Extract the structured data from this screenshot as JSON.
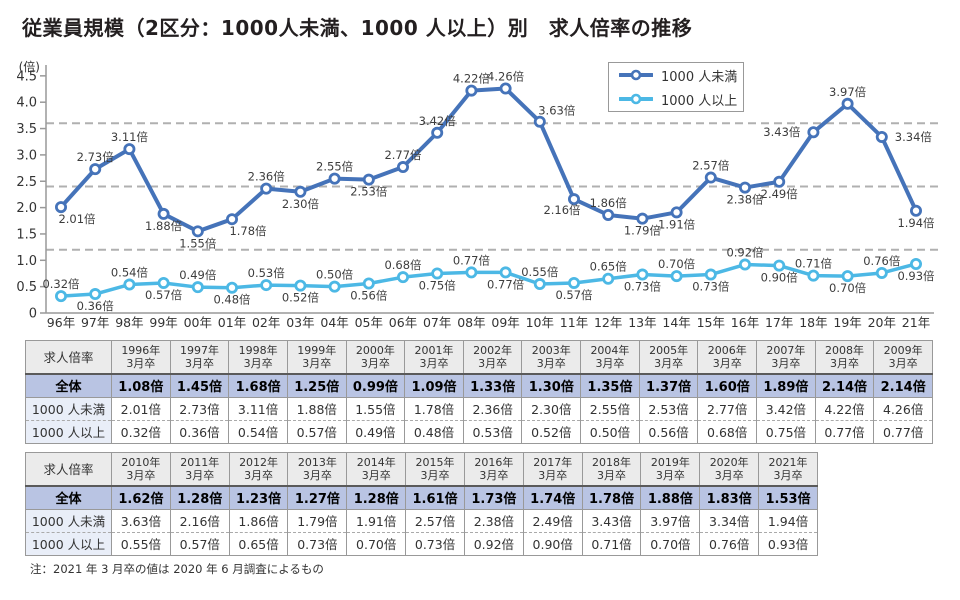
{
  "title": "従業員規模（2区分：1000人未満、1000 人以上）別　求人倍率の推移",
  "footnote": "注：2021 年 3 月卒の値は 2020 年 6 月調査によるもの",
  "colors": {
    "under1000": "#4573b9",
    "over1000": "#4cb8e5",
    "axis": "#999999",
    "gridline": "#b0b0b0",
    "data_label": "#3d3d3d",
    "table_border": "#999999",
    "table_header_bg": "#ebebeb",
    "total_row_bg": "#b9c4e3",
    "row_label_bg": "#e9eef8"
  },
  "chart_data": {
    "type": "line",
    "title": "従業員規模（2区分：1000人未満、1000 人以上）別　求人倍率の推移",
    "unit_label": "(倍)",
    "xlabel": "",
    "ylabel": "倍",
    "ylim": [
      0,
      4.5
    ],
    "ytick_step": 0.5,
    "grid": "dashed horizontal lines",
    "dashed_gridlines": [
      1.2,
      2.4,
      3.6
    ],
    "legend_position": "top-right",
    "x": [
      "96年",
      "97年",
      "98年",
      "99年",
      "00年",
      "01年",
      "02年",
      "03年",
      "04年",
      "05年",
      "06年",
      "07年",
      "08年",
      "09年",
      "10年",
      "11年",
      "12年",
      "13年",
      "14年",
      "15年",
      "16年",
      "17年",
      "18年",
      "19年",
      "20年",
      "21年"
    ],
    "series": [
      {
        "name": "1000 人未満",
        "color": "#4573b9",
        "values": [
          2.01,
          2.73,
          3.11,
          1.88,
          1.55,
          1.78,
          2.36,
          2.3,
          2.55,
          2.53,
          2.77,
          3.42,
          4.22,
          4.26,
          3.63,
          2.16,
          1.86,
          1.79,
          1.91,
          2.57,
          2.38,
          2.49,
          3.43,
          3.97,
          3.34,
          1.94
        ],
        "point_labels": [
          "2.01倍",
          "2.73倍",
          "3.11倍",
          "1.88倍",
          "1.55倍",
          "1.78倍",
          "2.36倍",
          "2.30倍",
          "2.55倍",
          "2.53倍",
          "2.77倍",
          "3.42倍",
          "4.22倍",
          "4.26倍",
          "3.63倍",
          "2.16倍",
          "1.86倍",
          "1.79倍",
          "1.91倍",
          "2.57倍",
          "2.38倍",
          "2.49倍",
          "3.43倍",
          "3.97倍",
          "3.34倍",
          "1.94倍"
        ],
        "label_side": [
          "below-right",
          "above",
          "above",
          "below",
          "below",
          "below-right",
          "above",
          "below",
          "above",
          "below",
          "above",
          "above",
          "above",
          "above",
          "above-right",
          "below-left",
          "above",
          "below",
          "below",
          "above",
          "below",
          "below",
          "left",
          "above",
          "right",
          "below"
        ]
      },
      {
        "name": "1000 人以上",
        "color": "#4cb8e5",
        "values": [
          0.32,
          0.36,
          0.54,
          0.57,
          0.49,
          0.48,
          0.53,
          0.52,
          0.5,
          0.56,
          0.68,
          0.75,
          0.77,
          0.77,
          0.55,
          0.57,
          0.65,
          0.73,
          0.7,
          0.73,
          0.92,
          0.9,
          0.71,
          0.7,
          0.76,
          0.93
        ],
        "point_labels": [
          "0.32倍",
          "0.36倍",
          "0.54倍",
          "0.57倍",
          "0.49倍",
          "0.48倍",
          "0.53倍",
          "0.52倍",
          "0.50倍",
          "0.56倍",
          "0.68倍",
          "0.75倍",
          "0.77倍",
          "0.77倍",
          "0.55倍",
          "0.57倍",
          "0.65倍",
          "0.73倍",
          "0.70倍",
          "0.73倍",
          "0.92倍",
          "0.90倍",
          "0.71倍",
          "0.70倍",
          "0.76倍",
          "0.93倍"
        ],
        "label_side": [
          "above",
          "below",
          "above",
          "below",
          "above",
          "below",
          "above",
          "below",
          "above",
          "below",
          "above",
          "below",
          "above",
          "below",
          "above",
          "below",
          "above",
          "below",
          "above",
          "below",
          "above",
          "below",
          "above",
          "below",
          "above",
          "below"
        ]
      }
    ]
  },
  "tables": [
    {
      "corner_label": "求人倍率",
      "columns": [
        {
          "year": "1996年",
          "term": "3月卒"
        },
        {
          "year": "1997年",
          "term": "3月卒"
        },
        {
          "year": "1998年",
          "term": "3月卒"
        },
        {
          "year": "1999年",
          "term": "3月卒"
        },
        {
          "year": "2000年",
          "term": "3月卒"
        },
        {
          "year": "2001年",
          "term": "3月卒"
        },
        {
          "year": "2002年",
          "term": "3月卒"
        },
        {
          "year": "2003年",
          "term": "3月卒"
        },
        {
          "year": "2004年",
          "term": "3月卒"
        },
        {
          "year": "2005年",
          "term": "3月卒"
        },
        {
          "year": "2006年",
          "term": "3月卒"
        },
        {
          "year": "2007年",
          "term": "3月卒"
        },
        {
          "year": "2008年",
          "term": "3月卒"
        },
        {
          "year": "2009年",
          "term": "3月卒"
        }
      ],
      "rows": [
        {
          "label": "全体",
          "type": "total",
          "values": [
            "1.08倍",
            "1.45倍",
            "1.68倍",
            "1.25倍",
            "0.99倍",
            "1.09倍",
            "1.33倍",
            "1.30倍",
            "1.35倍",
            "1.37倍",
            "1.60倍",
            "1.89倍",
            "2.14倍",
            "2.14倍"
          ]
        },
        {
          "label": "1000 人未満",
          "type": "under",
          "values": [
            "2.01倍",
            "2.73倍",
            "3.11倍",
            "1.88倍",
            "1.55倍",
            "1.78倍",
            "2.36倍",
            "2.30倍",
            "2.55倍",
            "2.53倍",
            "2.77倍",
            "3.42倍",
            "4.22倍",
            "4.26倍"
          ]
        },
        {
          "label": "1000 人以上",
          "type": "over",
          "values": [
            "0.32倍",
            "0.36倍",
            "0.54倍",
            "0.57倍",
            "0.49倍",
            "0.48倍",
            "0.53倍",
            "0.52倍",
            "0.50倍",
            "0.56倍",
            "0.68倍",
            "0.75倍",
            "0.77倍",
            "0.77倍"
          ]
        }
      ]
    },
    {
      "corner_label": "求人倍率",
      "columns": [
        {
          "year": "2010年",
          "term": "3月卒"
        },
        {
          "year": "2011年",
          "term": "3月卒"
        },
        {
          "year": "2012年",
          "term": "3月卒"
        },
        {
          "year": "2013年",
          "term": "3月卒"
        },
        {
          "year": "2014年",
          "term": "3月卒"
        },
        {
          "year": "2015年",
          "term": "3月卒"
        },
        {
          "year": "2016年",
          "term": "3月卒"
        },
        {
          "year": "2017年",
          "term": "3月卒"
        },
        {
          "year": "2018年",
          "term": "3月卒"
        },
        {
          "year": "2019年",
          "term": "3月卒"
        },
        {
          "year": "2020年",
          "term": "3月卒"
        },
        {
          "year": "2021年",
          "term": "3月卒"
        }
      ],
      "rows": [
        {
          "label": "全体",
          "type": "total",
          "values": [
            "1.62倍",
            "1.28倍",
            "1.23倍",
            "1.27倍",
            "1.28倍",
            "1.61倍",
            "1.73倍",
            "1.74倍",
            "1.78倍",
            "1.88倍",
            "1.83倍",
            "1.53倍"
          ]
        },
        {
          "label": "1000 人未満",
          "type": "under",
          "values": [
            "3.63倍",
            "2.16倍",
            "1.86倍",
            "1.79倍",
            "1.91倍",
            "2.57倍",
            "2.38倍",
            "2.49倍",
            "3.43倍",
            "3.97倍",
            "3.34倍",
            "1.94倍"
          ]
        },
        {
          "label": "1000 人以上",
          "type": "over",
          "values": [
            "0.55倍",
            "0.57倍",
            "0.65倍",
            "0.73倍",
            "0.70倍",
            "0.73倍",
            "0.92倍",
            "0.90倍",
            "0.71倍",
            "0.70倍",
            "0.76倍",
            "0.93倍"
          ]
        }
      ]
    }
  ]
}
